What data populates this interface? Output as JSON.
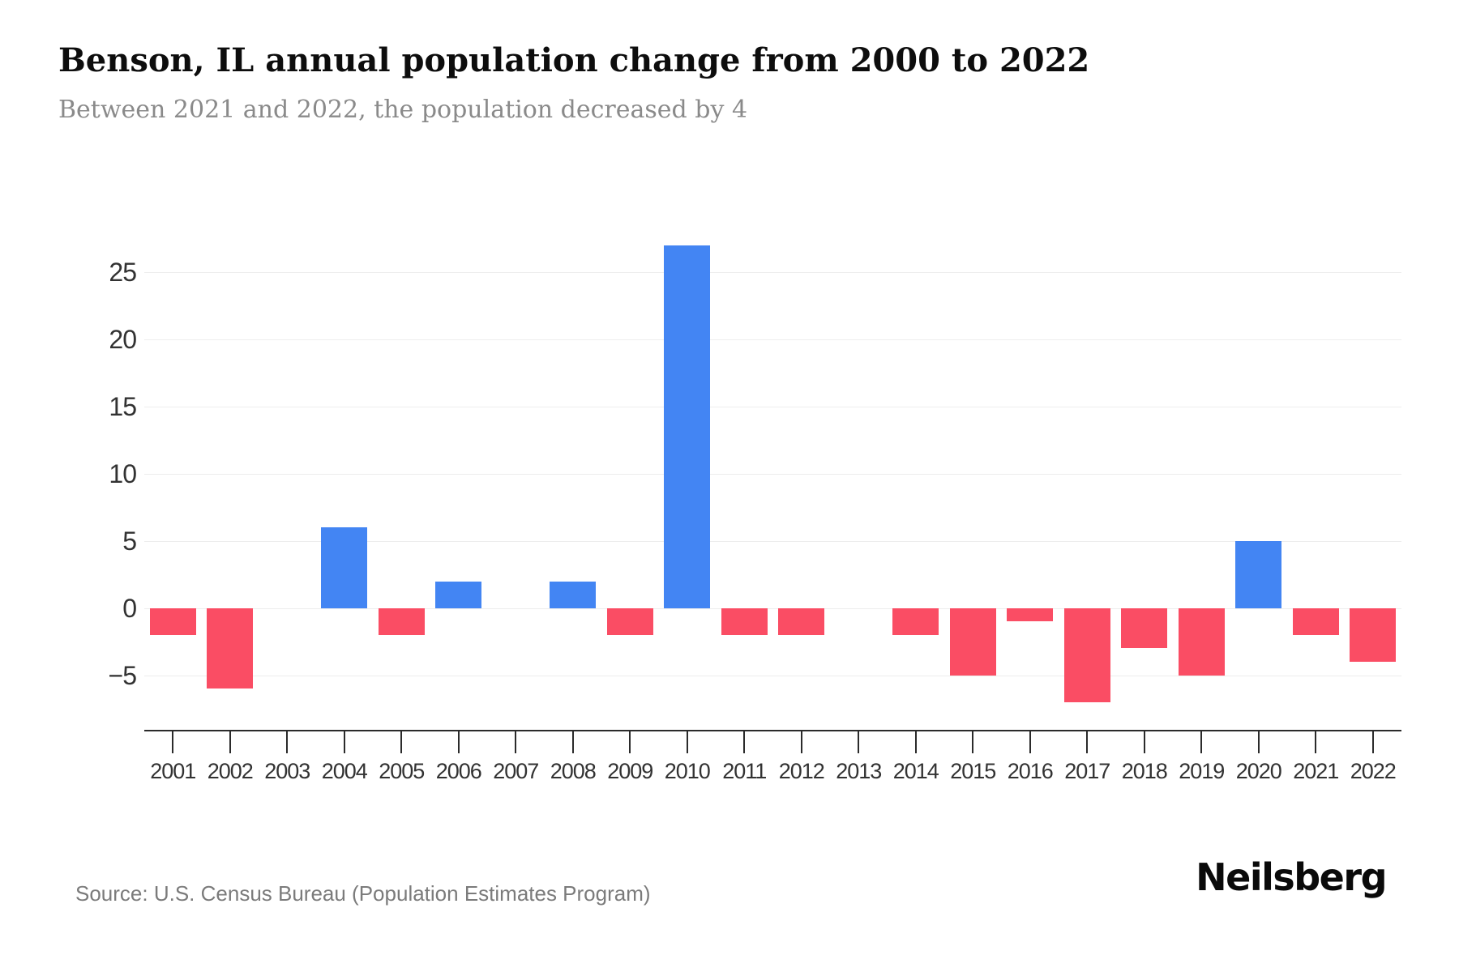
{
  "header": {
    "title": "Benson, IL annual population change from 2000 to 2022",
    "subtitle": "Between 2021 and 2022, the population decreased by 4"
  },
  "chart_data": {
    "type": "bar",
    "title": "Benson, IL annual population change from 2000 to 2022",
    "categories": [
      "2001",
      "2002",
      "2003",
      "2004",
      "2005",
      "2006",
      "2007",
      "2008",
      "2009",
      "2010",
      "2011",
      "2012",
      "2013",
      "2014",
      "2015",
      "2016",
      "2017",
      "2018",
      "2019",
      "2020",
      "2021",
      "2022"
    ],
    "values": [
      -2,
      -6,
      0,
      6,
      -2,
      2,
      0,
      2,
      -2,
      27,
      -2,
      -2,
      0,
      -2,
      -5,
      -1,
      -7,
      -3,
      -5,
      5,
      -2,
      -4
    ],
    "xlabel": "",
    "ylabel": "",
    "ylim": [
      -7.8,
      27.8
    ],
    "yticks": [
      -5,
      0,
      5,
      10,
      15,
      20,
      25
    ],
    "grid": true,
    "legend": "none",
    "colors": {
      "positive_bar": "#4385f3",
      "negative_bar": "#fa4d64",
      "gridline": "#ededed",
      "axis": "#2b2b2b",
      "tick_label": "#323232",
      "title_text": "#0d0d0d",
      "subtitle_text": "#8a8a8a",
      "source_text": "#7b7b7b",
      "brand_text": "#0a0a0a"
    }
  },
  "footer": {
    "source": "Source: U.S. Census Bureau (Population Estimates Program)",
    "brand": "Neilsberg"
  }
}
